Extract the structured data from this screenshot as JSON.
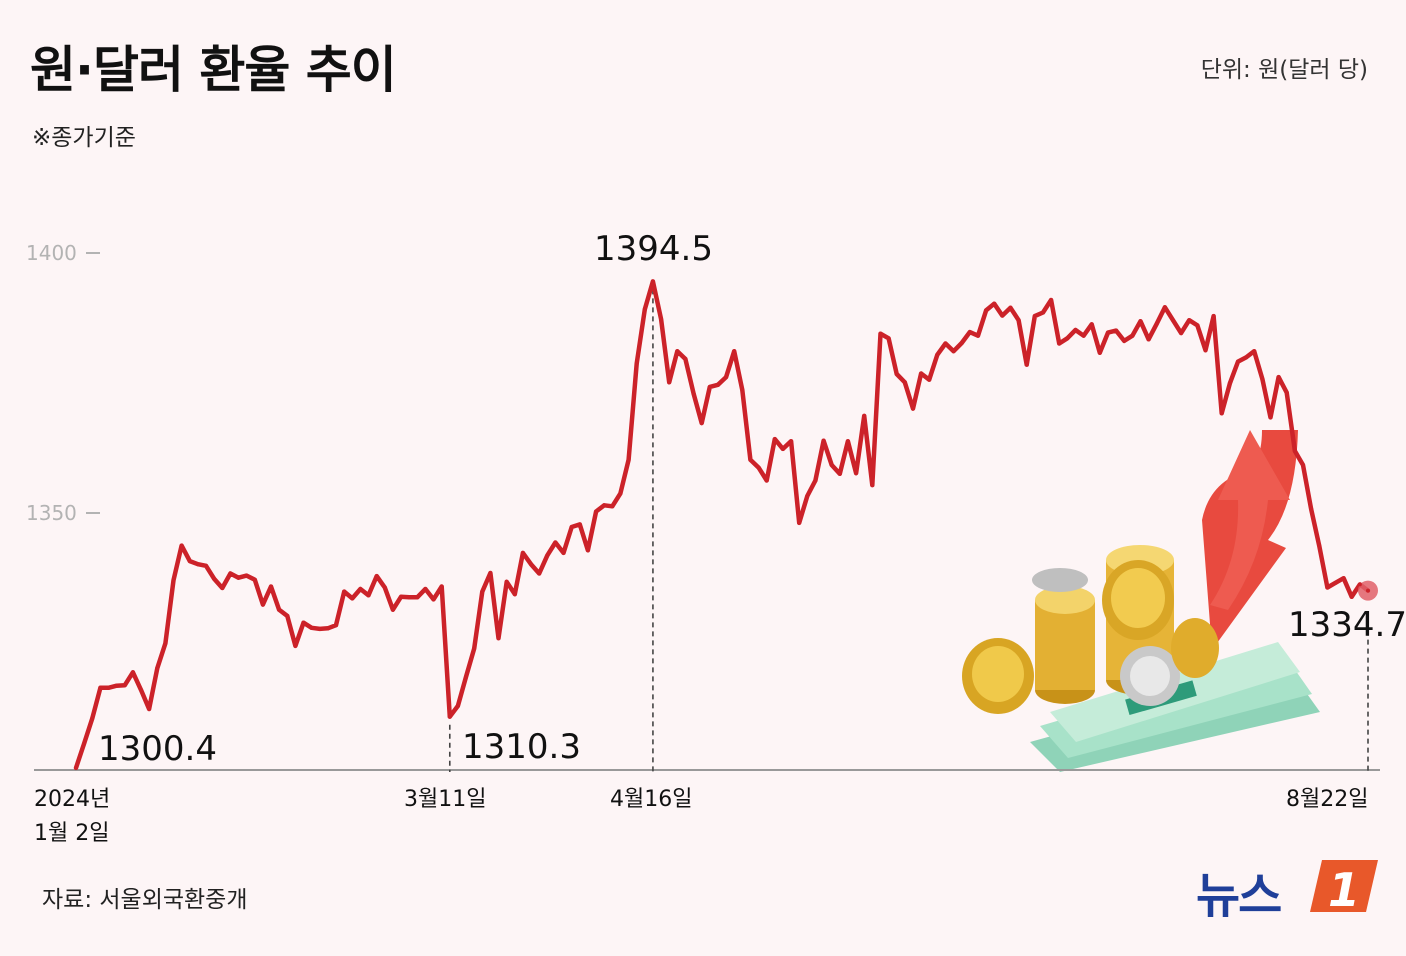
{
  "title": "원·달러 환율 추이",
  "note": "※종가기준",
  "unit": "단위: 원(달러 당)",
  "source": "자료: 서울외국환중개",
  "logo": {
    "text": "뉴스",
    "mark": "1"
  },
  "colors": {
    "line": "#cc2229",
    "background": "#fdf5f6",
    "logo_blue": "#1f3f99",
    "logo_orange": "#e8582a"
  },
  "illustration": "money-coins-arrow-icon",
  "chart_data": {
    "type": "line",
    "title": "원·달러 환율 추이",
    "y_ticks": [
      "1400",
      "1350"
    ],
    "ylim": [
      1300,
      1400
    ],
    "x_labels": [
      {
        "line1": "2024년",
        "line2": "1월 2일"
      },
      {
        "line1": "3월11일",
        "line2": ""
      },
      {
        "line1": "4월16일",
        "line2": ""
      },
      {
        "line1": "8월22일",
        "line2": ""
      }
    ],
    "annotations": [
      {
        "label": "1300.4",
        "index": 0
      },
      {
        "label": "1310.3",
        "index": 46
      },
      {
        "label": "1394.5",
        "index": 71
      },
      {
        "label": "1334.7",
        "index": 159
      }
    ],
    "values": [
      1300.4,
      1305.1,
      1310,
      1315.9,
      1315.9,
      1316.3,
      1316.4,
      1318.9,
      1315.5,
      1311.8,
      1319.7,
      1324.5,
      1336.7,
      1343.4,
      1340.4,
      1339.8,
      1339.5,
      1337,
      1335.2,
      1338,
      1337.2,
      1337.6,
      1336.8,
      1332,
      1335.5,
      1331,
      1329.8,
      1324,
      1328.5,
      1327.5,
      1327.3,
      1327.4,
      1328,
      1334.5,
      1333.2,
      1335,
      1333.8,
      1337.5,
      1335.3,
      1331,
      1333.5,
      1333.4,
      1333.4,
      1335,
      1333,
      1335.5,
      1310.3,
      1312.4,
      1318,
      1323.5,
      1334.5,
      1338.1,
      1325.5,
      1336.4,
      1334,
      1342,
      1339.8,
      1338,
      1341.5,
      1344,
      1342,
      1347,
      1347.5,
      1342.5,
      1350,
      1351.2,
      1351,
      1353.5,
      1360,
      1378.6,
      1389.1,
      1394.5,
      1387.2,
      1375,
      1381,
      1379.5,
      1372.8,
      1367.1,
      1374.1,
      1374.5,
      1376,
      1381,
      1373.5,
      1360,
      1358.5,
      1356,
      1364,
      1362.1,
      1363.6,
      1347.8,
      1353,
      1356,
      1363.7,
      1359,
      1357.3,
      1363.6,
      1357.4,
      1368.5,
      1355.1,
      1384.4,
      1383.5,
      1376.6,
      1375,
      1369.9,
      1376.7,
      1375.5,
      1380.3,
      1382.5,
      1381,
      1382.6,
      1384.7,
      1384,
      1388.9,
      1390.2,
      1387.9,
      1389.4,
      1387,
      1378.4,
      1387.8,
      1388.5,
      1390.9,
      1382.5,
      1383.5,
      1385.1,
      1384,
      1386.2,
      1380.7,
      1384.6,
      1385,
      1383,
      1384,
      1386.8,
      1383.3,
      1386.3,
      1389.5,
      1387,
      1384.5,
      1387,
      1386,
      1381.2,
      1387.8,
      1369,
      1374.8,
      1379,
      1379.8,
      1381,
      1375.6,
      1368.2,
      1376,
      1373,
      1361.7,
      1359,
      1350.5,
      1343.4,
      1335.3,
      1336.2,
      1337.1,
      1333.5,
      1335.9,
      1334.7
    ]
  }
}
